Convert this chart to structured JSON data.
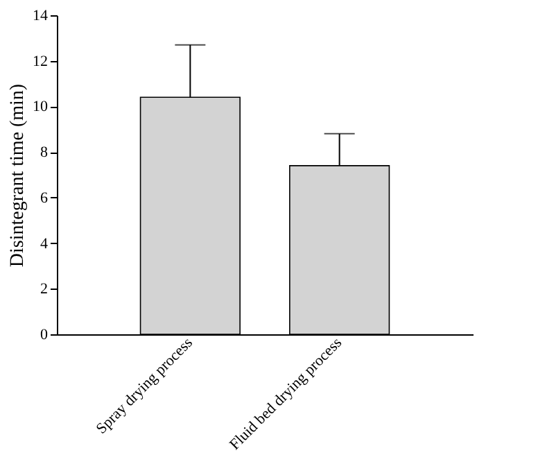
{
  "chart_data": {
    "type": "bar",
    "ylabel": "Disintegrant time (min)",
    "categories": [
      "Spray drying process",
      "Fluid bed drying process"
    ],
    "values": [
      10.4,
      7.4
    ],
    "errors": [
      [
        10.4,
        12.7
      ],
      [
        7.4,
        8.8
      ]
    ],
    "color": "#d3d3d3",
    "ylim": [
      0,
      14
    ],
    "yticks": [
      0,
      2,
      4,
      6,
      8,
      10,
      12,
      14
    ],
    "grid": false
  }
}
